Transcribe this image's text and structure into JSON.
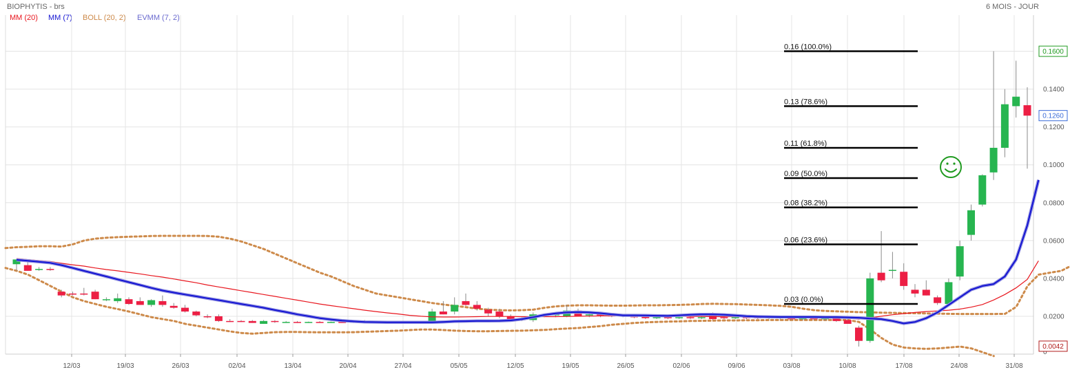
{
  "header": {
    "title": "BIOPHYTIS - brs",
    "period": "6 MOIS - JOUR"
  },
  "legend": [
    {
      "label": "MM (20)",
      "color": "#e8151d"
    },
    {
      "label": "MM (7)",
      "color": "#1414d2"
    },
    {
      "label": "BOLL (20, 2)",
      "color": "#cd8a4a"
    },
    {
      "label": "EVMM (7, 2)",
      "color": "#6a6acf"
    }
  ],
  "colors": {
    "up": "#27b550",
    "down": "#ec1f44",
    "mm20": "#e8151d",
    "mm7": "#1414d2",
    "boll": "#cd8a4a",
    "grid": "#e4e4e4",
    "fib": "#000000",
    "smiley": "#1f9a1f"
  },
  "icons": {
    "annotation": "smiley-face-icon"
  },
  "chart_data": {
    "type": "candlestick",
    "y_range": [
      0,
      0.18
    ],
    "y_ticks": [
      "0.0200",
      "0.0400",
      "0.0600",
      "0.0800",
      "0.1000",
      "0.1200",
      "0.1400"
    ],
    "y_zero_label": "0",
    "x_ticks": [
      "12/03",
      "19/03",
      "26/03",
      "02/04",
      "13/04",
      "20/04",
      "27/04",
      "05/05",
      "12/05",
      "19/05",
      "26/05",
      "02/06",
      "09/06",
      "03/08",
      "10/08",
      "17/08",
      "24/08",
      "31/08"
    ],
    "price_badges": [
      {
        "label": "0.1600",
        "value": 0.16,
        "color": "#1f9a1f"
      },
      {
        "label": "0.1260",
        "value": 0.126,
        "color": "#3a6bd8"
      },
      {
        "label": "0.0042",
        "value": 0.0042,
        "color": "#b01b1b"
      }
    ],
    "fibonacci": [
      {
        "label": "0.16  (100.0%)",
        "value": 0.16
      },
      {
        "label": "0.13  (78.6%)",
        "value": 0.131
      },
      {
        "label": "0.11  (61.8%)",
        "value": 0.109
      },
      {
        "label": "0.09  (50.0%)",
        "value": 0.093
      },
      {
        "label": "0.08  (38.2%)",
        "value": 0.0775
      },
      {
        "label": "0.06  (23.6%)",
        "value": 0.058
      },
      {
        "label": "0.03  (0.0%)",
        "value": 0.0265
      }
    ],
    "candles": [
      {
        "o": 0.0475,
        "h": 0.05,
        "l": 0.044,
        "c": 0.05
      },
      {
        "o": 0.047,
        "h": 0.049,
        "l": 0.044,
        "c": 0.044
      },
      {
        "o": 0.0445,
        "h": 0.046,
        "l": 0.044,
        "c": 0.045
      },
      {
        "o": 0.045,
        "h": 0.046,
        "l": 0.044,
        "c": 0.0445
      },
      {
        "o": 0.033,
        "h": 0.034,
        "l": 0.03,
        "c": 0.031
      },
      {
        "o": 0.032,
        "h": 0.033,
        "l": 0.031,
        "c": 0.0315
      },
      {
        "o": 0.032,
        "h": 0.035,
        "l": 0.031,
        "c": 0.0315
      },
      {
        "o": 0.033,
        "h": 0.034,
        "l": 0.029,
        "c": 0.029
      },
      {
        "o": 0.029,
        "h": 0.03,
        "l": 0.028,
        "c": 0.029
      },
      {
        "o": 0.028,
        "h": 0.032,
        "l": 0.027,
        "c": 0.0295
      },
      {
        "o": 0.029,
        "h": 0.03,
        "l": 0.026,
        "c": 0.0265
      },
      {
        "o": 0.028,
        "h": 0.03,
        "l": 0.026,
        "c": 0.026
      },
      {
        "o": 0.026,
        "h": 0.029,
        "l": 0.025,
        "c": 0.0285
      },
      {
        "o": 0.028,
        "h": 0.031,
        "l": 0.025,
        "c": 0.026
      },
      {
        "o": 0.0255,
        "h": 0.027,
        "l": 0.024,
        "c": 0.0245
      },
      {
        "o": 0.0245,
        "h": 0.026,
        "l": 0.022,
        "c": 0.0225
      },
      {
        "o": 0.0225,
        "h": 0.023,
        "l": 0.02,
        "c": 0.0205
      },
      {
        "o": 0.02,
        "h": 0.021,
        "l": 0.019,
        "c": 0.0195
      },
      {
        "o": 0.02,
        "h": 0.021,
        "l": 0.017,
        "c": 0.0175
      },
      {
        "o": 0.0175,
        "h": 0.0185,
        "l": 0.017,
        "c": 0.017
      },
      {
        "o": 0.0175,
        "h": 0.018,
        "l": 0.017,
        "c": 0.017
      },
      {
        "o": 0.0175,
        "h": 0.018,
        "l": 0.0165,
        "c": 0.0165
      },
      {
        "o": 0.016,
        "h": 0.018,
        "l": 0.016,
        "c": 0.0175
      },
      {
        "o": 0.0175,
        "h": 0.018,
        "l": 0.0165,
        "c": 0.017
      },
      {
        "o": 0.017,
        "h": 0.0175,
        "l": 0.0165,
        "c": 0.017
      },
      {
        "o": 0.017,
        "h": 0.0175,
        "l": 0.0165,
        "c": 0.0168
      },
      {
        "o": 0.0168,
        "h": 0.0172,
        "l": 0.0165,
        "c": 0.017
      },
      {
        "o": 0.017,
        "h": 0.0175,
        "l": 0.0165,
        "c": 0.0168
      },
      {
        "o": 0.0168,
        "h": 0.0172,
        "l": 0.0165,
        "c": 0.017
      },
      {
        "o": 0.017,
        "h": 0.0175,
        "l": 0.0165,
        "c": 0.0168
      },
      {
        "o": 0.0168,
        "h": 0.0175,
        "l": 0.0165,
        "c": 0.0172
      },
      {
        "o": 0.0172,
        "h": 0.018,
        "l": 0.0168,
        "c": 0.017
      },
      {
        "o": 0.017,
        "h": 0.0175,
        "l": 0.0165,
        "c": 0.0168
      },
      {
        "o": 0.0168,
        "h": 0.0175,
        "l": 0.0162,
        "c": 0.017
      },
      {
        "o": 0.017,
        "h": 0.0175,
        "l": 0.0165,
        "c": 0.0168
      },
      {
        "o": 0.0168,
        "h": 0.0175,
        "l": 0.0165,
        "c": 0.017
      },
      {
        "o": 0.017,
        "h": 0.0175,
        "l": 0.0165,
        "c": 0.0168
      },
      {
        "o": 0.017,
        "h": 0.024,
        "l": 0.016,
        "c": 0.0225
      },
      {
        "o": 0.0225,
        "h": 0.028,
        "l": 0.021,
        "c": 0.021
      },
      {
        "o": 0.0225,
        "h": 0.03,
        "l": 0.021,
        "c": 0.026
      },
      {
        "o": 0.028,
        "h": 0.032,
        "l": 0.0255,
        "c": 0.026
      },
      {
        "o": 0.026,
        "h": 0.028,
        "l": 0.023,
        "c": 0.024
      },
      {
        "o": 0.0235,
        "h": 0.0245,
        "l": 0.02,
        "c": 0.0215
      },
      {
        "o": 0.0225,
        "h": 0.024,
        "l": 0.019,
        "c": 0.02
      },
      {
        "o": 0.02,
        "h": 0.021,
        "l": 0.018,
        "c": 0.0185
      },
      {
        "o": 0.0185,
        "h": 0.0195,
        "l": 0.0175,
        "c": 0.018
      },
      {
        "o": 0.018,
        "h": 0.022,
        "l": 0.017,
        "c": 0.021
      },
      {
        "o": 0.021,
        "h": 0.0215,
        "l": 0.0195,
        "c": 0.0205
      },
      {
        "o": 0.0205,
        "h": 0.0215,
        "l": 0.0195,
        "c": 0.021
      },
      {
        "o": 0.02,
        "h": 0.026,
        "l": 0.0195,
        "c": 0.023
      },
      {
        "o": 0.023,
        "h": 0.024,
        "l": 0.02,
        "c": 0.02
      },
      {
        "o": 0.0205,
        "h": 0.0215,
        "l": 0.0195,
        "c": 0.021
      },
      {
        "o": 0.021,
        "h": 0.0215,
        "l": 0.0195,
        "c": 0.0205
      },
      {
        "o": 0.0205,
        "h": 0.021,
        "l": 0.0195,
        "c": 0.02
      },
      {
        "o": 0.0205,
        "h": 0.021,
        "l": 0.0195,
        "c": 0.0198
      },
      {
        "o": 0.02,
        "h": 0.021,
        "l": 0.019,
        "c": 0.0198
      },
      {
        "o": 0.02,
        "h": 0.021,
        "l": 0.0185,
        "c": 0.019
      },
      {
        "o": 0.019,
        "h": 0.02,
        "l": 0.0185,
        "c": 0.0195
      },
      {
        "o": 0.0195,
        "h": 0.02,
        "l": 0.0185,
        "c": 0.019
      },
      {
        "o": 0.019,
        "h": 0.02,
        "l": 0.0185,
        "c": 0.0195
      },
      {
        "o": 0.0195,
        "h": 0.02,
        "l": 0.0185,
        "c": 0.0192
      },
      {
        "o": 0.0192,
        "h": 0.02,
        "l": 0.0185,
        "c": 0.0195
      },
      {
        "o": 0.021,
        "h": 0.022,
        "l": 0.018,
        "c": 0.0185
      },
      {
        "o": 0.0195,
        "h": 0.02,
        "l": 0.0185,
        "c": 0.0192
      },
      {
        "o": 0.0192,
        "h": 0.02,
        "l": 0.0185,
        "c": 0.0195
      },
      {
        "o": 0.02,
        "h": 0.0205,
        "l": 0.0185,
        "c": 0.019
      },
      {
        "o": 0.0195,
        "h": 0.02,
        "l": 0.0185,
        "c": 0.0192
      },
      {
        "o": 0.0192,
        "h": 0.02,
        "l": 0.0185,
        "c": 0.0195
      },
      {
        "o": 0.0195,
        "h": 0.02,
        "l": 0.0185,
        "c": 0.019
      },
      {
        "o": 0.019,
        "h": 0.0195,
        "l": 0.018,
        "c": 0.0188
      },
      {
        "o": 0.0188,
        "h": 0.0195,
        "l": 0.018,
        "c": 0.019
      },
      {
        "o": 0.019,
        "h": 0.02,
        "l": 0.018,
        "c": 0.0185
      },
      {
        "o": 0.0185,
        "h": 0.0195,
        "l": 0.0175,
        "c": 0.019
      },
      {
        "o": 0.019,
        "h": 0.02,
        "l": 0.017,
        "c": 0.0175
      },
      {
        "o": 0.018,
        "h": 0.019,
        "l": 0.016,
        "c": 0.016
      },
      {
        "o": 0.014,
        "h": 0.015,
        "l": 0.004,
        "c": 0.007
      },
      {
        "o": 0.007,
        "h": 0.043,
        "l": 0.006,
        "c": 0.04
      },
      {
        "o": 0.043,
        "h": 0.065,
        "l": 0.038,
        "c": 0.039
      },
      {
        "o": 0.044,
        "h": 0.054,
        "l": 0.04,
        "c": 0.0445
      },
      {
        "o": 0.0435,
        "h": 0.048,
        "l": 0.034,
        "c": 0.036
      },
      {
        "o": 0.034,
        "h": 0.037,
        "l": 0.03,
        "c": 0.032
      },
      {
        "o": 0.034,
        "h": 0.039,
        "l": 0.031,
        "c": 0.031
      },
      {
        "o": 0.03,
        "h": 0.031,
        "l": 0.026,
        "c": 0.027
      },
      {
        "o": 0.0265,
        "h": 0.04,
        "l": 0.0255,
        "c": 0.038
      },
      {
        "o": 0.041,
        "h": 0.06,
        "l": 0.039,
        "c": 0.057
      },
      {
        "o": 0.063,
        "h": 0.079,
        "l": 0.06,
        "c": 0.076
      },
      {
        "o": 0.079,
        "h": 0.095,
        "l": 0.078,
        "c": 0.0945
      },
      {
        "o": 0.096,
        "h": 0.16,
        "l": 0.092,
        "c": 0.109
      },
      {
        "o": 0.109,
        "h": 0.14,
        "l": 0.104,
        "c": 0.132
      },
      {
        "o": 0.131,
        "h": 0.155,
        "l": 0.125,
        "c": 0.136
      },
      {
        "o": 0.1315,
        "h": 0.141,
        "l": 0.098,
        "c": 0.126
      }
    ],
    "mm20": [
      0.0505,
      0.0499,
      0.0494,
      0.0489,
      0.048,
      0.0472,
      0.0465,
      0.0455,
      0.0447,
      0.044,
      0.0432,
      0.0424,
      0.0415,
      0.0407,
      0.0397,
      0.0387,
      0.0377,
      0.0365,
      0.0355,
      0.0345,
      0.0335,
      0.0325,
      0.0315,
      0.0305,
      0.0295,
      0.0285,
      0.0275,
      0.0265,
      0.0256,
      0.0248,
      0.024,
      0.0232,
      0.0225,
      0.0218,
      0.0212,
      0.0205,
      0.02,
      0.0197,
      0.0196,
      0.0196,
      0.0197,
      0.0198,
      0.0199,
      0.0199,
      0.0199,
      0.0198,
      0.0198,
      0.0198,
      0.0198,
      0.0199,
      0.02,
      0.0201,
      0.0202,
      0.0203,
      0.0203,
      0.0203,
      0.0203,
      0.0202,
      0.0201,
      0.02,
      0.0199,
      0.0199,
      0.0198,
      0.0198,
      0.0198,
      0.0197,
      0.0197,
      0.0197,
      0.0196,
      0.0196,
      0.0195,
      0.0194,
      0.0193,
      0.0192,
      0.019,
      0.0185,
      0.0192,
      0.02,
      0.0208,
      0.0214,
      0.022,
      0.0225,
      0.0228,
      0.0232,
      0.0238,
      0.0248,
      0.0262,
      0.0286,
      0.0315,
      0.035,
      0.0395,
      0.0493
    ],
    "mm7": [
      0.0498,
      0.0493,
      0.0488,
      0.0482,
      0.047,
      0.0455,
      0.044,
      0.0425,
      0.041,
      0.0395,
      0.038,
      0.0365,
      0.035,
      0.0336,
      0.0325,
      0.0315,
      0.0305,
      0.0295,
      0.0285,
      0.0275,
      0.0265,
      0.0255,
      0.0245,
      0.0233,
      0.0222,
      0.021,
      0.02,
      0.019,
      0.0183,
      0.0177,
      0.0173,
      0.017,
      0.0169,
      0.0168,
      0.0168,
      0.0168,
      0.0168,
      0.0168,
      0.017,
      0.0173,
      0.0174,
      0.0175,
      0.0175,
      0.0176,
      0.0178,
      0.0185,
      0.0195,
      0.0207,
      0.0215,
      0.022,
      0.0222,
      0.022,
      0.0216,
      0.021,
      0.0205,
      0.0205,
      0.0204,
      0.0203,
      0.0202,
      0.0205,
      0.0208,
      0.021,
      0.021,
      0.0208,
      0.0204,
      0.02,
      0.0198,
      0.0197,
      0.0196,
      0.0196,
      0.0196,
      0.0196,
      0.0195,
      0.0195,
      0.0194,
      0.0192,
      0.0188,
      0.0185,
      0.0175,
      0.0162,
      0.017,
      0.019,
      0.022,
      0.026,
      0.03,
      0.034,
      0.036,
      0.037,
      0.041,
      0.05,
      0.068,
      0.092
    ],
    "boll_upper": [
      0.056,
      0.0565,
      0.0567,
      0.057,
      0.057,
      0.0568,
      0.058,
      0.06,
      0.061,
      0.0615,
      0.0618,
      0.062,
      0.0622,
      0.0624,
      0.0625,
      0.0625,
      0.0625,
      0.0625,
      0.0624,
      0.062,
      0.061,
      0.0595,
      0.0575,
      0.0555,
      0.053,
      0.0505,
      0.048,
      0.0455,
      0.043,
      0.041,
      0.0385,
      0.036,
      0.034,
      0.032,
      0.031,
      0.03,
      0.029,
      0.028,
      0.027,
      0.0262,
      0.0255,
      0.0248,
      0.024,
      0.0235,
      0.0232,
      0.0231,
      0.0232,
      0.0235,
      0.0245,
      0.0252,
      0.0256,
      0.0258,
      0.0258,
      0.0257,
      0.0256,
      0.0256,
      0.0257,
      0.0258,
      0.0258,
      0.0259,
      0.026,
      0.0262,
      0.0265,
      0.0266,
      0.0265,
      0.0264,
      0.0262,
      0.026,
      0.0258,
      0.0255,
      0.025,
      0.024,
      0.0232,
      0.0228,
      0.0226,
      0.0224,
      0.0222,
      0.0221,
      0.0219,
      0.0218,
      0.0217,
      0.0216,
      0.0215,
      0.0214,
      0.0213,
      0.0212,
      0.0212,
      0.0212,
      0.0212,
      0.0213,
      0.025,
      0.036,
      0.042,
      0.043,
      0.044,
      0.047,
      0.056,
      0.07,
      0.088,
      0.108,
      0.127
    ],
    "boll_lower": [
      0.0455,
      0.044,
      0.042,
      0.039,
      0.036,
      0.033,
      0.03,
      0.028,
      0.0265,
      0.025,
      0.0238,
      0.0225,
      0.021,
      0.0195,
      0.0185,
      0.0175,
      0.016,
      0.015,
      0.014,
      0.013,
      0.012,
      0.0112,
      0.0108,
      0.0112,
      0.0116,
      0.0117,
      0.0117,
      0.0116,
      0.0115,
      0.0115,
      0.0115,
      0.0116,
      0.0118,
      0.012,
      0.0122,
      0.0124,
      0.0127,
      0.013,
      0.013,
      0.0127,
      0.0124,
      0.0122,
      0.0121,
      0.0121,
      0.0122,
      0.0123,
      0.0124,
      0.0126,
      0.0128,
      0.0132,
      0.0135,
      0.0138,
      0.0143,
      0.0148,
      0.0155,
      0.016,
      0.0165,
      0.0168,
      0.017,
      0.0172,
      0.0173,
      0.0175,
      0.0176,
      0.0177,
      0.0178,
      0.0178,
      0.0179,
      0.0179,
      0.018,
      0.018,
      0.018,
      0.018,
      0.018,
      0.018,
      0.018,
      0.018,
      0.017,
      0.013,
      0.0085,
      0.005,
      0.0035,
      0.003,
      0.0028,
      0.003,
      0.0035,
      0.004,
      0.003,
      0.001,
      -0.001
    ]
  }
}
